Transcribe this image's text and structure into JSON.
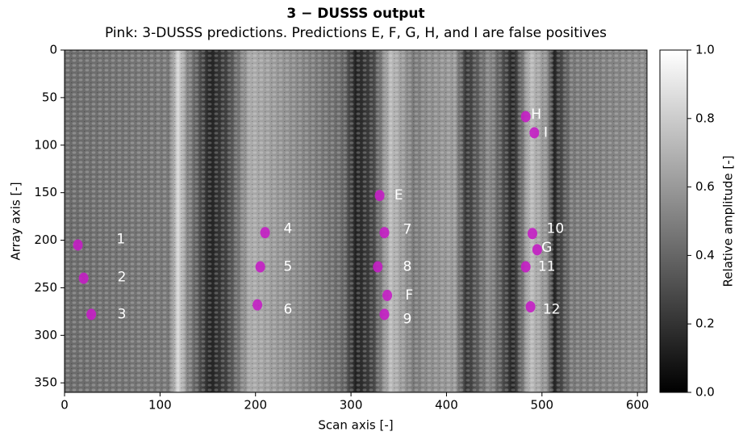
{
  "chart_data": {
    "type": "image",
    "title": "3 − DUSSS output",
    "subtitle": "Pink: 3-DUSSS predictions. Predictions E, F, G, H, and I are false positives",
    "x_label": "Scan axis [-]",
    "y_label": "Array axis [-]",
    "colorbar_label": "Relative amplitude [-]",
    "xlim": [
      0,
      610
    ],
    "xticks": [
      0,
      100,
      200,
      300,
      400,
      500,
      600
    ],
    "ylim": [
      360,
      0
    ],
    "yticks": [
      0,
      50,
      100,
      150,
      200,
      250,
      300,
      350
    ],
    "clim": [
      0,
      1
    ],
    "cticks": [
      {
        "value": 0,
        "label": "0.0"
      },
      0.2,
      0.4,
      0.6,
      0.8,
      {
        "value": 1,
        "label": "1.0"
      }
    ],
    "prediction_color": "#c41ec4",
    "prediction_x": [
      14,
      20,
      28,
      210,
      205,
      202,
      335,
      328,
      335,
      338,
      330,
      483,
      492,
      490,
      495,
      483,
      488
    ],
    "prediction_y": [
      205,
      240,
      278,
      192,
      228,
      268,
      192,
      228,
      278,
      258,
      153,
      70,
      87,
      193,
      210,
      228,
      270
    ],
    "annotations": [
      {
        "text": "1",
        "x": 59,
        "y": 199
      },
      {
        "text": "2",
        "x": 60,
        "y": 239
      },
      {
        "text": "3",
        "x": 60,
        "y": 278
      },
      {
        "text": "4",
        "x": 234,
        "y": 188
      },
      {
        "text": "5",
        "x": 234,
        "y": 228
      },
      {
        "text": "6",
        "x": 234,
        "y": 273
      },
      {
        "text": "7",
        "x": 359,
        "y": 189
      },
      {
        "text": "8",
        "x": 359,
        "y": 228
      },
      {
        "text": "9",
        "x": 359,
        "y": 283
      },
      {
        "text": "E",
        "x": 350,
        "y": 153
      },
      {
        "text": "F",
        "x": 361,
        "y": 258
      },
      {
        "text": "H",
        "x": 494,
        "y": 68
      },
      {
        "text": "I",
        "x": 504,
        "y": 87
      },
      {
        "text": "10",
        "x": 514,
        "y": 188
      },
      {
        "text": "G",
        "x": 505,
        "y": 208
      },
      {
        "text": "11",
        "x": 505,
        "y": 228
      },
      {
        "text": "12",
        "x": 510,
        "y": 273
      }
    ]
  }
}
